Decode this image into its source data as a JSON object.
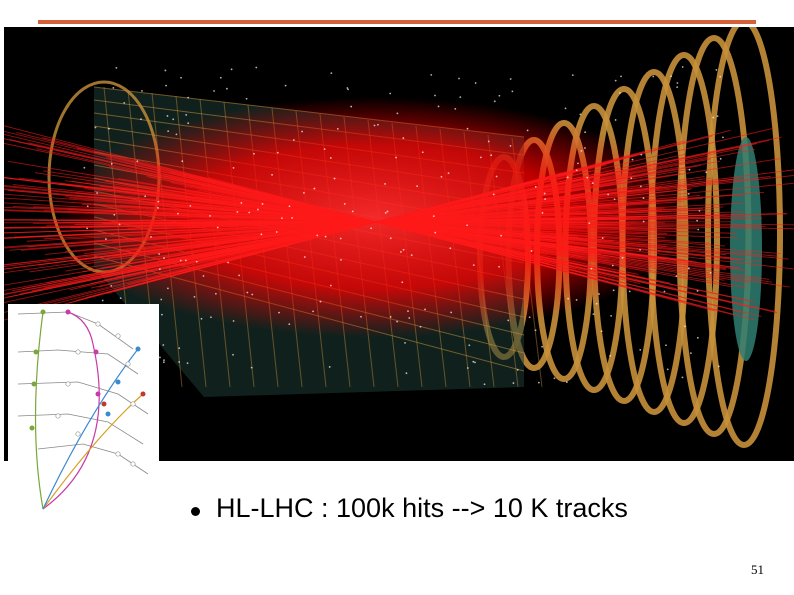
{
  "slide": {
    "bullet_text": "HL-LHC : 100k hits --> 10 K tracks",
    "page_number": "51"
  },
  "colors": {
    "top_rule": "#d4603a",
    "detector_frame": "#c8903a",
    "tracks": "#ff1a1a",
    "sensor_fill": "#2f7f72",
    "background": "#000000"
  },
  "images": {
    "detector_view": "detector-event-display",
    "inset": "track-finding-diagram"
  }
}
